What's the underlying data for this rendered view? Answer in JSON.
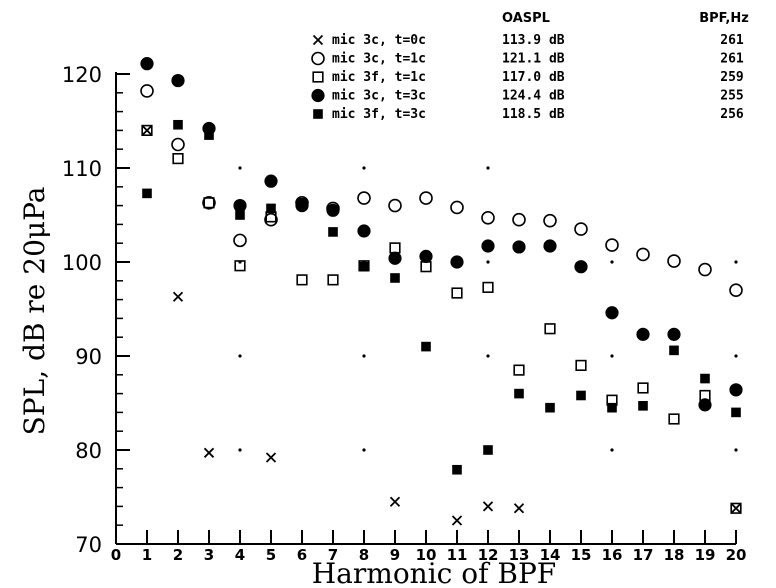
{
  "chart_data": {
    "type": "scatter",
    "xlabel": "Harmonic of BPF",
    "ylabel": "SPL, dB re 20μPa",
    "xlim": [
      0,
      20
    ],
    "ylim": [
      70,
      122
    ],
    "xticks": [
      0,
      1,
      2,
      3,
      4,
      5,
      6,
      7,
      8,
      9,
      10,
      11,
      12,
      13,
      14,
      15,
      16,
      17,
      18,
      19,
      20
    ],
    "yticks": [
      70,
      80,
      90,
      100,
      110,
      120
    ],
    "grid": "dots",
    "legend_position": "top-right",
    "legend_headers": {
      "oaspl": "OASPL",
      "bpf": "BPF,Hz"
    },
    "grid_dots": [
      {
        "x": 4,
        "y": 110
      },
      {
        "x": 8,
        "y": 110
      },
      {
        "x": 12,
        "y": 110
      },
      {
        "x": 4,
        "y": 100
      },
      {
        "x": 8,
        "y": 100
      },
      {
        "x": 12,
        "y": 100
      },
      {
        "x": 16,
        "y": 100
      },
      {
        "x": 20,
        "y": 100
      },
      {
        "x": 4,
        "y": 90
      },
      {
        "x": 8,
        "y": 90
      },
      {
        "x": 12,
        "y": 90
      },
      {
        "x": 16,
        "y": 90
      },
      {
        "x": 20,
        "y": 90
      },
      {
        "x": 4,
        "y": 80
      },
      {
        "x": 8,
        "y": 80
      },
      {
        "x": 12,
        "y": 80
      },
      {
        "x": 16,
        "y": 80
      },
      {
        "x": 20,
        "y": 80
      }
    ],
    "series": [
      {
        "name": "mic 3c, t=0c",
        "marker": "x",
        "oaspl": "113.9 dB",
        "bpf": "261",
        "points": [
          {
            "x": 1,
            "y": 114
          },
          {
            "x": 2,
            "y": 96.3
          },
          {
            "x": 3,
            "y": 79.7
          },
          {
            "x": 5,
            "y": 79.2
          },
          {
            "x": 9,
            "y": 74.5
          },
          {
            "x": 11,
            "y": 72.5
          },
          {
            "x": 12,
            "y": 74
          },
          {
            "x": 13,
            "y": 73.8
          },
          {
            "x": 20,
            "y": 73.8
          }
        ]
      },
      {
        "name": "mic 3c, t=1c",
        "marker": "open-circle",
        "oaspl": "121.1 dB",
        "bpf": "261",
        "points": [
          {
            "x": 1,
            "y": 118.2
          },
          {
            "x": 2,
            "y": 112.5
          },
          {
            "x": 3,
            "y": 106.3
          },
          {
            "x": 4,
            "y": 102.3
          },
          {
            "x": 5,
            "y": 104.5
          },
          {
            "x": 6,
            "y": 106.3
          },
          {
            "x": 7,
            "y": 105.7
          },
          {
            "x": 8,
            "y": 106.8
          },
          {
            "x": 9,
            "y": 106
          },
          {
            "x": 10,
            "y": 106.8
          },
          {
            "x": 11,
            "y": 105.8
          },
          {
            "x": 12,
            "y": 104.7
          },
          {
            "x": 13,
            "y": 104.5
          },
          {
            "x": 14,
            "y": 104.4
          },
          {
            "x": 15,
            "y": 103.5
          },
          {
            "x": 16,
            "y": 101.8
          },
          {
            "x": 17,
            "y": 100.8
          },
          {
            "x": 18,
            "y": 100.1
          },
          {
            "x": 19,
            "y": 99.2
          },
          {
            "x": 20,
            "y": 97
          }
        ]
      },
      {
        "name": "mic 3f, t=1c",
        "marker": "open-square",
        "oaspl": "117.0 dB",
        "bpf": "259",
        "points": [
          {
            "x": 1,
            "y": 114
          },
          {
            "x": 2,
            "y": 111
          },
          {
            "x": 3,
            "y": 106.3
          },
          {
            "x": 4,
            "y": 99.6
          },
          {
            "x": 5,
            "y": 104.8
          },
          {
            "x": 6,
            "y": 98.1
          },
          {
            "x": 7,
            "y": 98.1
          },
          {
            "x": 8,
            "y": 99.6
          },
          {
            "x": 9,
            "y": 101.5
          },
          {
            "x": 10,
            "y": 99.5
          },
          {
            "x": 11,
            "y": 96.7
          },
          {
            "x": 12,
            "y": 97.3
          },
          {
            "x": 13,
            "y": 88.5
          },
          {
            "x": 14,
            "y": 92.9
          },
          {
            "x": 15,
            "y": 89
          },
          {
            "x": 16,
            "y": 85.3
          },
          {
            "x": 17,
            "y": 86.6
          },
          {
            "x": 18,
            "y": 83.3
          },
          {
            "x": 19,
            "y": 85.8
          },
          {
            "x": 20,
            "y": 73.8
          }
        ]
      },
      {
        "name": "mic 3c, t=3c",
        "marker": "filled-circle",
        "oaspl": "124.4 dB",
        "bpf": "255",
        "points": [
          {
            "x": 1,
            "y": 121.1
          },
          {
            "x": 2,
            "y": 119.3
          },
          {
            "x": 3,
            "y": 114.2
          },
          {
            "x": 4,
            "y": 106
          },
          {
            "x": 5,
            "y": 108.6
          },
          {
            "x": 6,
            "y": 106
          },
          {
            "x": 7,
            "y": 105.5
          },
          {
            "x": 8,
            "y": 103.3
          },
          {
            "x": 9,
            "y": 100.4
          },
          {
            "x": 10,
            "y": 100.6
          },
          {
            "x": 11,
            "y": 100
          },
          {
            "x": 12,
            "y": 101.7
          },
          {
            "x": 13,
            "y": 101.6
          },
          {
            "x": 14,
            "y": 101.7
          },
          {
            "x": 15,
            "y": 99.5
          },
          {
            "x": 16,
            "y": 94.6
          },
          {
            "x": 17,
            "y": 92.3
          },
          {
            "x": 18,
            "y": 92.3
          },
          {
            "x": 19,
            "y": 84.8
          },
          {
            "x": 20,
            "y": 86.4
          }
        ]
      },
      {
        "name": "mic 3f, t=3c",
        "marker": "filled-square",
        "oaspl": "118.5 dB",
        "bpf": "256",
        "points": [
          {
            "x": 1,
            "y": 107.3
          },
          {
            "x": 2,
            "y": 114.6
          },
          {
            "x": 3,
            "y": 113.5
          },
          {
            "x": 4,
            "y": 105
          },
          {
            "x": 5,
            "y": 105.7
          },
          {
            "x": 6,
            "y": 106.3
          },
          {
            "x": 7,
            "y": 103.2
          },
          {
            "x": 8,
            "y": 99.5
          },
          {
            "x": 9,
            "y": 98.3
          },
          {
            "x": 10,
            "y": 91
          },
          {
            "x": 11,
            "y": 77.9
          },
          {
            "x": 12,
            "y": 80
          },
          {
            "x": 13,
            "y": 86
          },
          {
            "x": 14,
            "y": 84.5
          },
          {
            "x": 15,
            "y": 85.8
          },
          {
            "x": 16,
            "y": 84.5
          },
          {
            "x": 17,
            "y": 84.7
          },
          {
            "x": 18,
            "y": 90.6
          },
          {
            "x": 19,
            "y": 87.6
          },
          {
            "x": 20,
            "y": 84
          }
        ]
      }
    ]
  }
}
